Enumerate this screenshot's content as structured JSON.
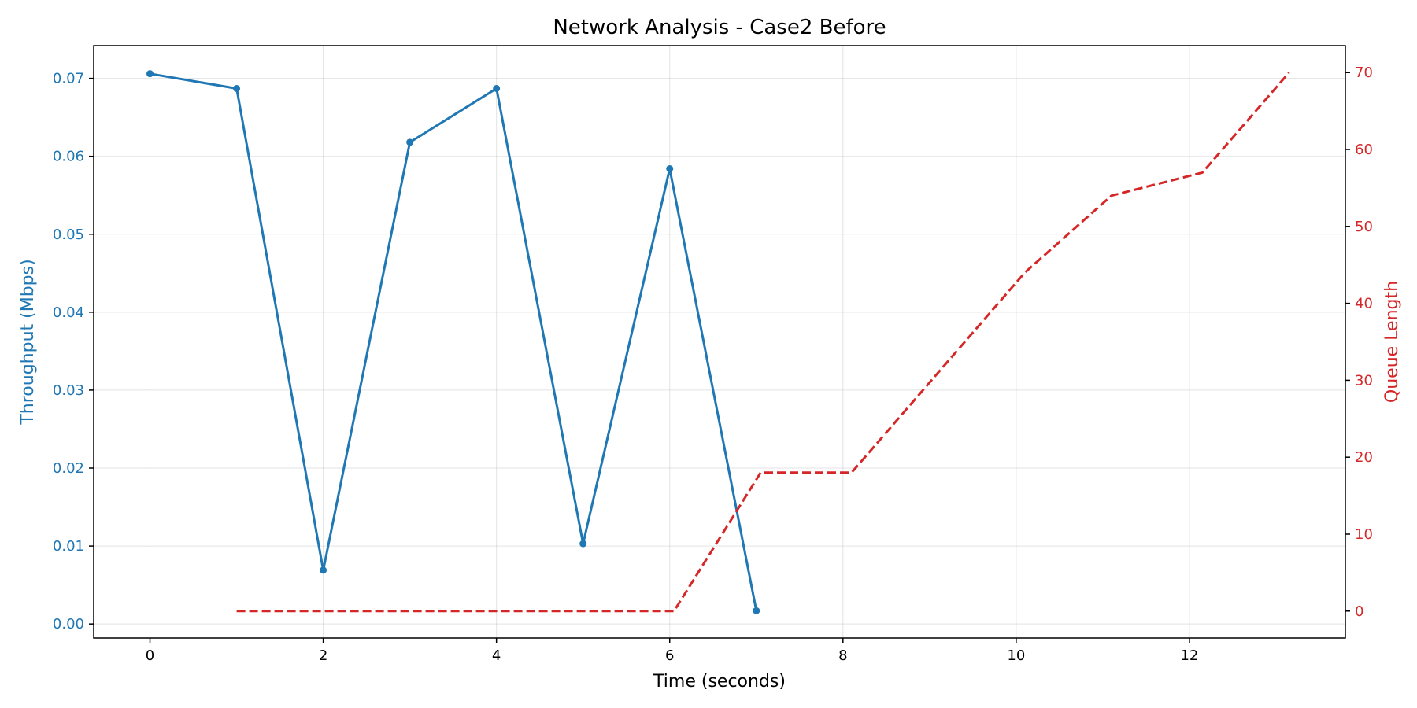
{
  "chart_data": {
    "type": "line",
    "title": "Network Analysis - Case2 Before",
    "xlabel": "Time (seconds)",
    "ylabel_left": "Throughput (Mbps)",
    "ylabel_right": "Queue Length",
    "xlim": [
      -0.65,
      13.8
    ],
    "ylim_left": [
      -0.0018,
      0.0742
    ],
    "ylim_right": [
      -3.5,
      73.5
    ],
    "x_ticks": [
      0,
      2,
      4,
      6,
      8,
      10,
      12
    ],
    "x_tick_labels": [
      "0",
      "2",
      "4",
      "6",
      "8",
      "10",
      "12"
    ],
    "y_left_ticks": [
      0.0,
      0.01,
      0.02,
      0.03,
      0.04,
      0.05,
      0.06,
      0.07
    ],
    "y_left_tick_labels": [
      "0.00",
      "0.01",
      "0.02",
      "0.03",
      "0.04",
      "0.05",
      "0.06",
      "0.07"
    ],
    "y_right_ticks": [
      0,
      10,
      20,
      30,
      40,
      50,
      60,
      70
    ],
    "y_right_tick_labels": [
      "0",
      "10",
      "20",
      "30",
      "40",
      "50",
      "60",
      "70"
    ],
    "grid": true,
    "colors": {
      "left_axis": "#1f77b4",
      "right_axis": "#d62728"
    },
    "series": [
      {
        "axis": "left",
        "style": "solid-with-markers",
        "color": "#1f77b4",
        "x": [
          0,
          1,
          2,
          3,
          4,
          5,
          6,
          7
        ],
        "y": [
          0.0706,
          0.0687,
          0.0069,
          0.0618,
          0.0687,
          0.0103,
          0.0584,
          0.0017
        ]
      },
      {
        "axis": "right",
        "style": "dashed",
        "color": "#d62728",
        "x": [
          1.0,
          2.0,
          3.0,
          4.0,
          5.0,
          6.05,
          7.05,
          8.1,
          9.1,
          10.1,
          11.1,
          12.15,
          13.15
        ],
        "y": [
          0,
          0,
          0,
          0,
          0,
          0,
          18,
          18,
          31,
          44,
          54,
          57,
          70
        ]
      }
    ]
  }
}
